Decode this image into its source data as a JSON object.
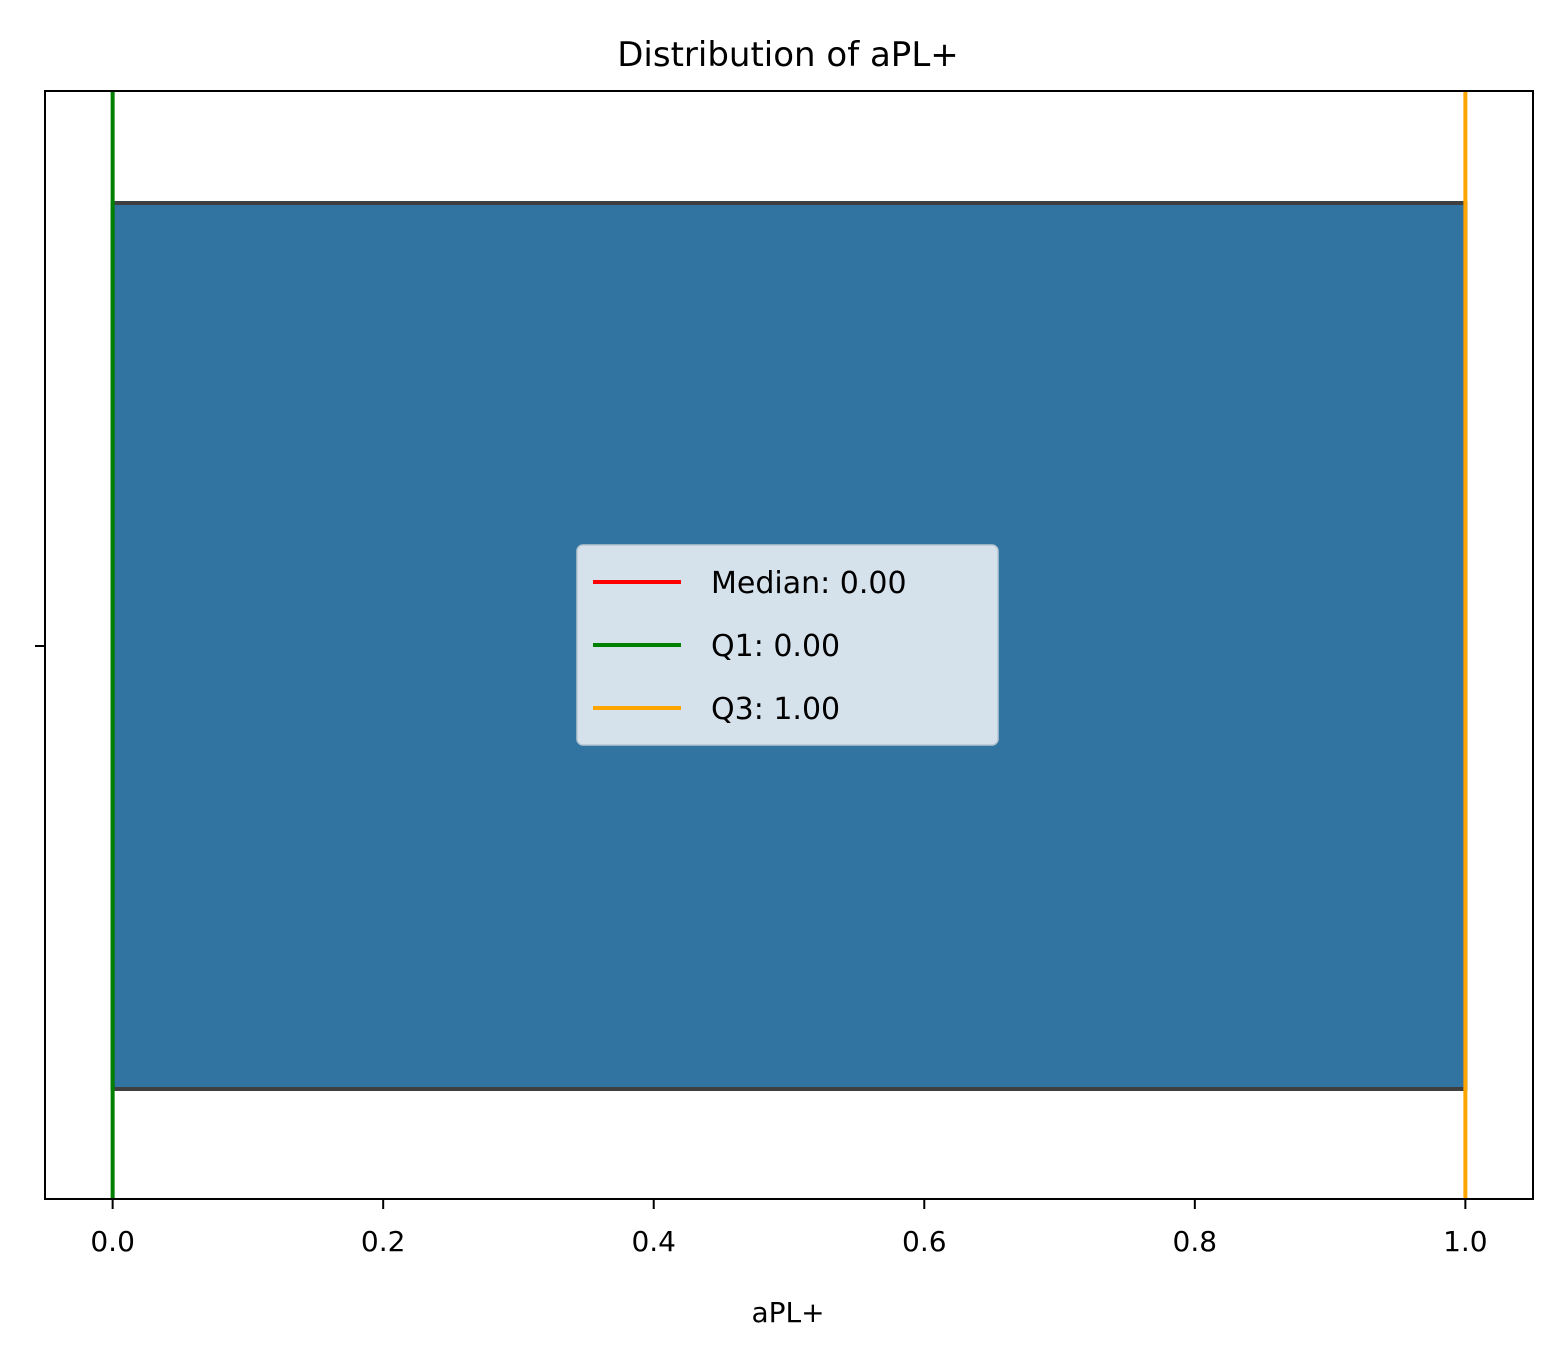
{
  "chart_data": {
    "type": "box",
    "title": "Distribution of aPL+",
    "xlabel": "aPL+",
    "ylabel": "",
    "xlim": [
      -0.05,
      1.05
    ],
    "xticks": [
      "0.0",
      "0.2",
      "0.4",
      "0.6",
      "0.8",
      "1.0"
    ],
    "xtick_values": [
      0.0,
      0.2,
      0.4,
      0.6,
      0.8,
      1.0
    ],
    "box": {
      "q1": 0.0,
      "median": 0.0,
      "q3": 1.0,
      "whisker_low": 0.0,
      "whisker_high": 1.0,
      "color": "#3274a1",
      "edge_color": "#3f3f3f"
    },
    "reference_lines": [
      {
        "name": "Median",
        "value": 0.0,
        "label": "Median: 0.00",
        "color": "#ff0000"
      },
      {
        "name": "Q1",
        "value": 0.0,
        "label": "Q1: 0.00",
        "color": "#008000"
      },
      {
        "name": "Q3",
        "value": 1.0,
        "label": "Q3: 1.00",
        "color": "#ffa500"
      }
    ],
    "legend_position": "center",
    "grid": false
  }
}
